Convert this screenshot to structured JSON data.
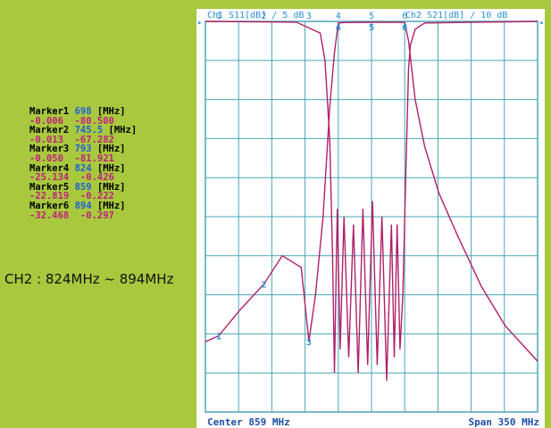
{
  "markers": [
    {
      "name": "Marker1",
      "freq": "698",
      "unit": "[MHz]",
      "val1": "-0.006",
      "val2": "-80.500"
    },
    {
      "name": "Marker2",
      "freq": "745.5",
      "unit": "[MHz]",
      "val1": "-0.013",
      "val2": "-67.282"
    },
    {
      "name": "Marker3",
      "freq": "793",
      "unit": "[MHz]",
      "val1": "-0.050",
      "val2": "-81.921"
    },
    {
      "name": "Marker4",
      "freq": "824",
      "unit": "[MHz]",
      "val1": "-25.134",
      "val2": "-0.426"
    },
    {
      "name": "Marker5",
      "freq": "859",
      "unit": "[MHz]",
      "val1": "-22.819",
      "val2": "-0.222"
    },
    {
      "name": "Marker6",
      "freq": "894",
      "unit": "[MHz]",
      "val1": "-32.468",
      "val2": "-0.297"
    }
  ],
  "band_label": "CH2 : 824MHz ~ 894MHz",
  "header": {
    "ch1": "Ch1 S11[dB] / 5 dB",
    "ch2": "Ch2 S21[dB] / 10 dB"
  },
  "footer": {
    "center": "Center 859 MHz",
    "span": "Span 350 MHz"
  },
  "colors": {
    "background": "#a8c83e",
    "grid": "#4aa6b6",
    "trace": "#b0206a",
    "header_text": "#2a8fd6",
    "footer_text": "#1d4fa8",
    "marker_label": "#000000",
    "marker_freq": "#1f5fd6",
    "marker_value": "#c0207a"
  },
  "chart_data": {
    "type": "line",
    "x_unit": "MHz",
    "xlim": [
      684,
      1034
    ],
    "grid": true,
    "series": [
      {
        "name": "S11",
        "scale_db_per_div": 5,
        "x": [
          684,
          780,
          805,
          810,
          815,
          818,
          820,
          823,
          826,
          830,
          835,
          840,
          845,
          850,
          855,
          860,
          865,
          870,
          875,
          880,
          883,
          886,
          889,
          892,
          895,
          898,
          900,
          905,
          915,
          1034
        ],
        "y": [
          0,
          -0.1,
          -1.5,
          -5,
          -15,
          -30,
          -45,
          -24,
          -42,
          -25,
          -43,
          -26,
          -45,
          -24,
          -44,
          -23,
          -44,
          -25,
          -46,
          -26,
          -43,
          -26,
          -42,
          -35,
          -20,
          -6,
          -3,
          -1,
          -0.2,
          0
        ]
      },
      {
        "name": "S21",
        "scale_db_per_div": 10,
        "x": [
          684,
          698,
          720,
          745.5,
          765,
          785,
          793,
          800,
          808,
          815,
          820,
          824,
          830,
          859,
          885,
          890,
          894,
          898,
          905,
          915,
          930,
          950,
          975,
          1000,
          1034
        ],
        "y": [
          -82,
          -80.5,
          -74,
          -67.282,
          -60,
          -63,
          -81.921,
          -70,
          -50,
          -22,
          -8,
          -0.426,
          -0.3,
          -0.222,
          -0.25,
          -0.26,
          -0.297,
          -5,
          -20,
          -32,
          -44,
          -55,
          -68,
          -78,
          -87
        ]
      }
    ],
    "markers": [
      {
        "label": "1",
        "x": 698
      },
      {
        "label": "2",
        "x": 745.5
      },
      {
        "label": "3",
        "x": 793
      },
      {
        "label": "4",
        "x": 824
      },
      {
        "label": "5",
        "x": 859
      },
      {
        "label": "6",
        "x": 894
      }
    ]
  }
}
